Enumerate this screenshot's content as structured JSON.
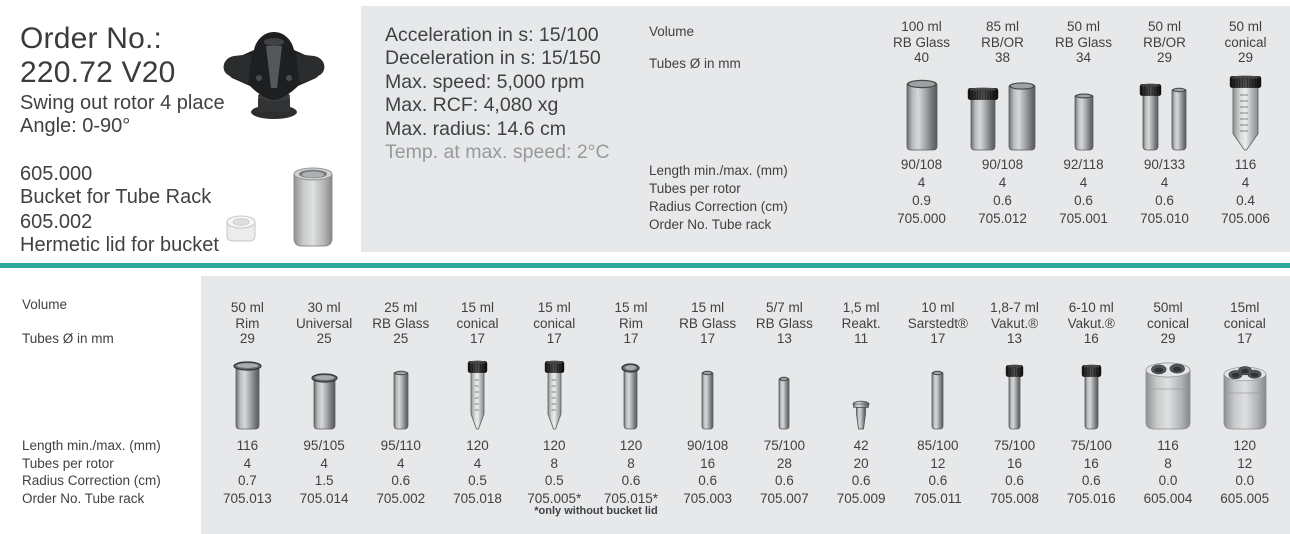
{
  "colors": {
    "accent": "#2BA79B",
    "panel": "#E7E8E9",
    "text": "#414042",
    "muted": "#97999B"
  },
  "product": {
    "order_no_label": "Order No.:",
    "order_no_value": "220.72 V20",
    "rotor_type": "Swing out rotor 4 place",
    "angle": "Angle: 0-90°",
    "accessories": [
      {
        "code": "605.000",
        "name": "Bucket for Tube Rack"
      },
      {
        "code": "605.002",
        "name": "Hermetic lid for bucket"
      }
    ]
  },
  "specs": {
    "acceleration": "Acceleration in s: 15/100",
    "deceleration": "Deceleration in s: 15/150",
    "max_speed": "Max. speed: 5,000 rpm",
    "max_rcf": "Max. RCF: 4,080 xg",
    "max_radius": "Max. radius: 14.6 cm",
    "temp": "Temp. at max. speed: 2°C"
  },
  "row_labels": {
    "volume": "Volume",
    "diameter": "Tubes Ø in mm",
    "length": "Length min./max. (mm)",
    "tubes_per_rotor": "Tubes per rotor",
    "radius_correction": "Radius Correction (cm)",
    "order_no": "Order No. Tube rack"
  },
  "top_table": {
    "columns": [
      {
        "volume": "100 ml",
        "type": "RB Glass",
        "diameter": "40",
        "length": "90/108",
        "tubes_per_rotor": "4",
        "radius_correction": "0.9",
        "order_no": "705.000",
        "icon": "tube-open-wide"
      },
      {
        "volume": "85 ml",
        "type": "RB/OR",
        "diameter": "38",
        "length": "90/108",
        "tubes_per_rotor": "4",
        "radius_correction": "0.6",
        "order_no": "705.012",
        "icon": "tube-pair-capped-wide"
      },
      {
        "volume": "50 ml",
        "type": "RB Glass",
        "diameter": "34",
        "length": "92/118",
        "tubes_per_rotor": "4",
        "radius_correction": "0.6",
        "order_no": "705.001",
        "icon": "tube-open-medium"
      },
      {
        "volume": "50 ml",
        "type": "RB/OR",
        "diameter": "29",
        "length": "90/133",
        "tubes_per_rotor": "4",
        "radius_correction": "0.6",
        "order_no": "705.010",
        "icon": "tube-pair-capped-narrow"
      },
      {
        "volume": "50 ml",
        "type": "conical",
        "diameter": "29",
        "length": "116",
        "tubes_per_rotor": "4",
        "radius_correction": "0.4",
        "order_no": "705.006",
        "icon": "tube-conical-capped-large"
      }
    ]
  },
  "bottom_table": {
    "footnote": "*only without bucket lid",
    "columns": [
      {
        "volume": "50 ml",
        "type": "Rim",
        "diameter": "29",
        "length": "116",
        "tubes_per_rotor": "4",
        "radius_correction": "0.7",
        "order_no": "705.013",
        "icon": "tube-rim-wide"
      },
      {
        "volume": "30 ml",
        "type": "Universal",
        "diameter": "25",
        "length": "95/105",
        "tubes_per_rotor": "4",
        "radius_correction": "1.5",
        "order_no": "705.014",
        "icon": "tube-rim-medium"
      },
      {
        "volume": "25 ml",
        "type": "RB Glass",
        "diameter": "25",
        "length": "95/110",
        "tubes_per_rotor": "4",
        "radius_correction": "0.6",
        "order_no": "705.002",
        "icon": "tube-open-25"
      },
      {
        "volume": "15 ml",
        "type": "conical",
        "diameter": "17",
        "length": "120",
        "tubes_per_rotor": "4",
        "radius_correction": "0.5",
        "order_no": "705.018",
        "icon": "tube-conical-capped-small"
      },
      {
        "volume": "15 ml",
        "type": "conical",
        "diameter": "17",
        "length": "120",
        "tubes_per_rotor": "8",
        "radius_correction": "0.5",
        "order_no": "705.005*",
        "icon": "tube-conical-capped-small"
      },
      {
        "volume": "15 ml",
        "type": "Rim",
        "diameter": "17",
        "length": "120",
        "tubes_per_rotor": "8",
        "radius_correction": "0.6",
        "order_no": "705.015*",
        "icon": "tube-rim-small"
      },
      {
        "volume": "15 ml",
        "type": "RB Glass",
        "diameter": "17",
        "length": "90/108",
        "tubes_per_rotor": "16",
        "radius_correction": "0.6",
        "order_no": "705.003",
        "icon": "tube-open-small"
      },
      {
        "volume": "5/7 ml",
        "type": "RB Glass",
        "diameter": "13",
        "length": "75/100",
        "tubes_per_rotor": "28",
        "radius_correction": "0.6",
        "order_no": "705.007",
        "icon": "tube-open-xs"
      },
      {
        "volume": "1,5 ml",
        "type": "Reakt.",
        "diameter": "11",
        "length": "42",
        "tubes_per_rotor": "20",
        "radius_correction": "0.6",
        "order_no": "705.009",
        "icon": "tube-micro"
      },
      {
        "volume": "10 ml",
        "type": "Sarstedt®",
        "diameter": "17",
        "length": "85/100",
        "tubes_per_rotor": "12",
        "radius_correction": "0.6",
        "order_no": "705.011",
        "icon": "tube-open-small"
      },
      {
        "volume": "1,8-7 ml",
        "type": "Vakut.®",
        "diameter": "13",
        "length": "75/100",
        "tubes_per_rotor": "16",
        "radius_correction": "0.6",
        "order_no": "705.008",
        "icon": "tube-capped-narrow"
      },
      {
        "volume": "6-10 ml",
        "type": "Vakut.®",
        "diameter": "16",
        "length": "75/100",
        "tubes_per_rotor": "16",
        "radius_correction": "0.6",
        "order_no": "705.016",
        "icon": "tube-capped-medium"
      },
      {
        "volume": "50ml",
        "type": "conical",
        "diameter": "29",
        "length": "116",
        "tubes_per_rotor": "8",
        "radius_correction": "0.0",
        "order_no": "605.004",
        "icon": "adapter-2hole"
      },
      {
        "volume": "15ml",
        "type": "conical",
        "diameter": "17",
        "length": "120",
        "tubes_per_rotor": "12",
        "radius_correction": "0.0",
        "order_no": "605.005",
        "icon": "adapter-3hole"
      }
    ]
  }
}
